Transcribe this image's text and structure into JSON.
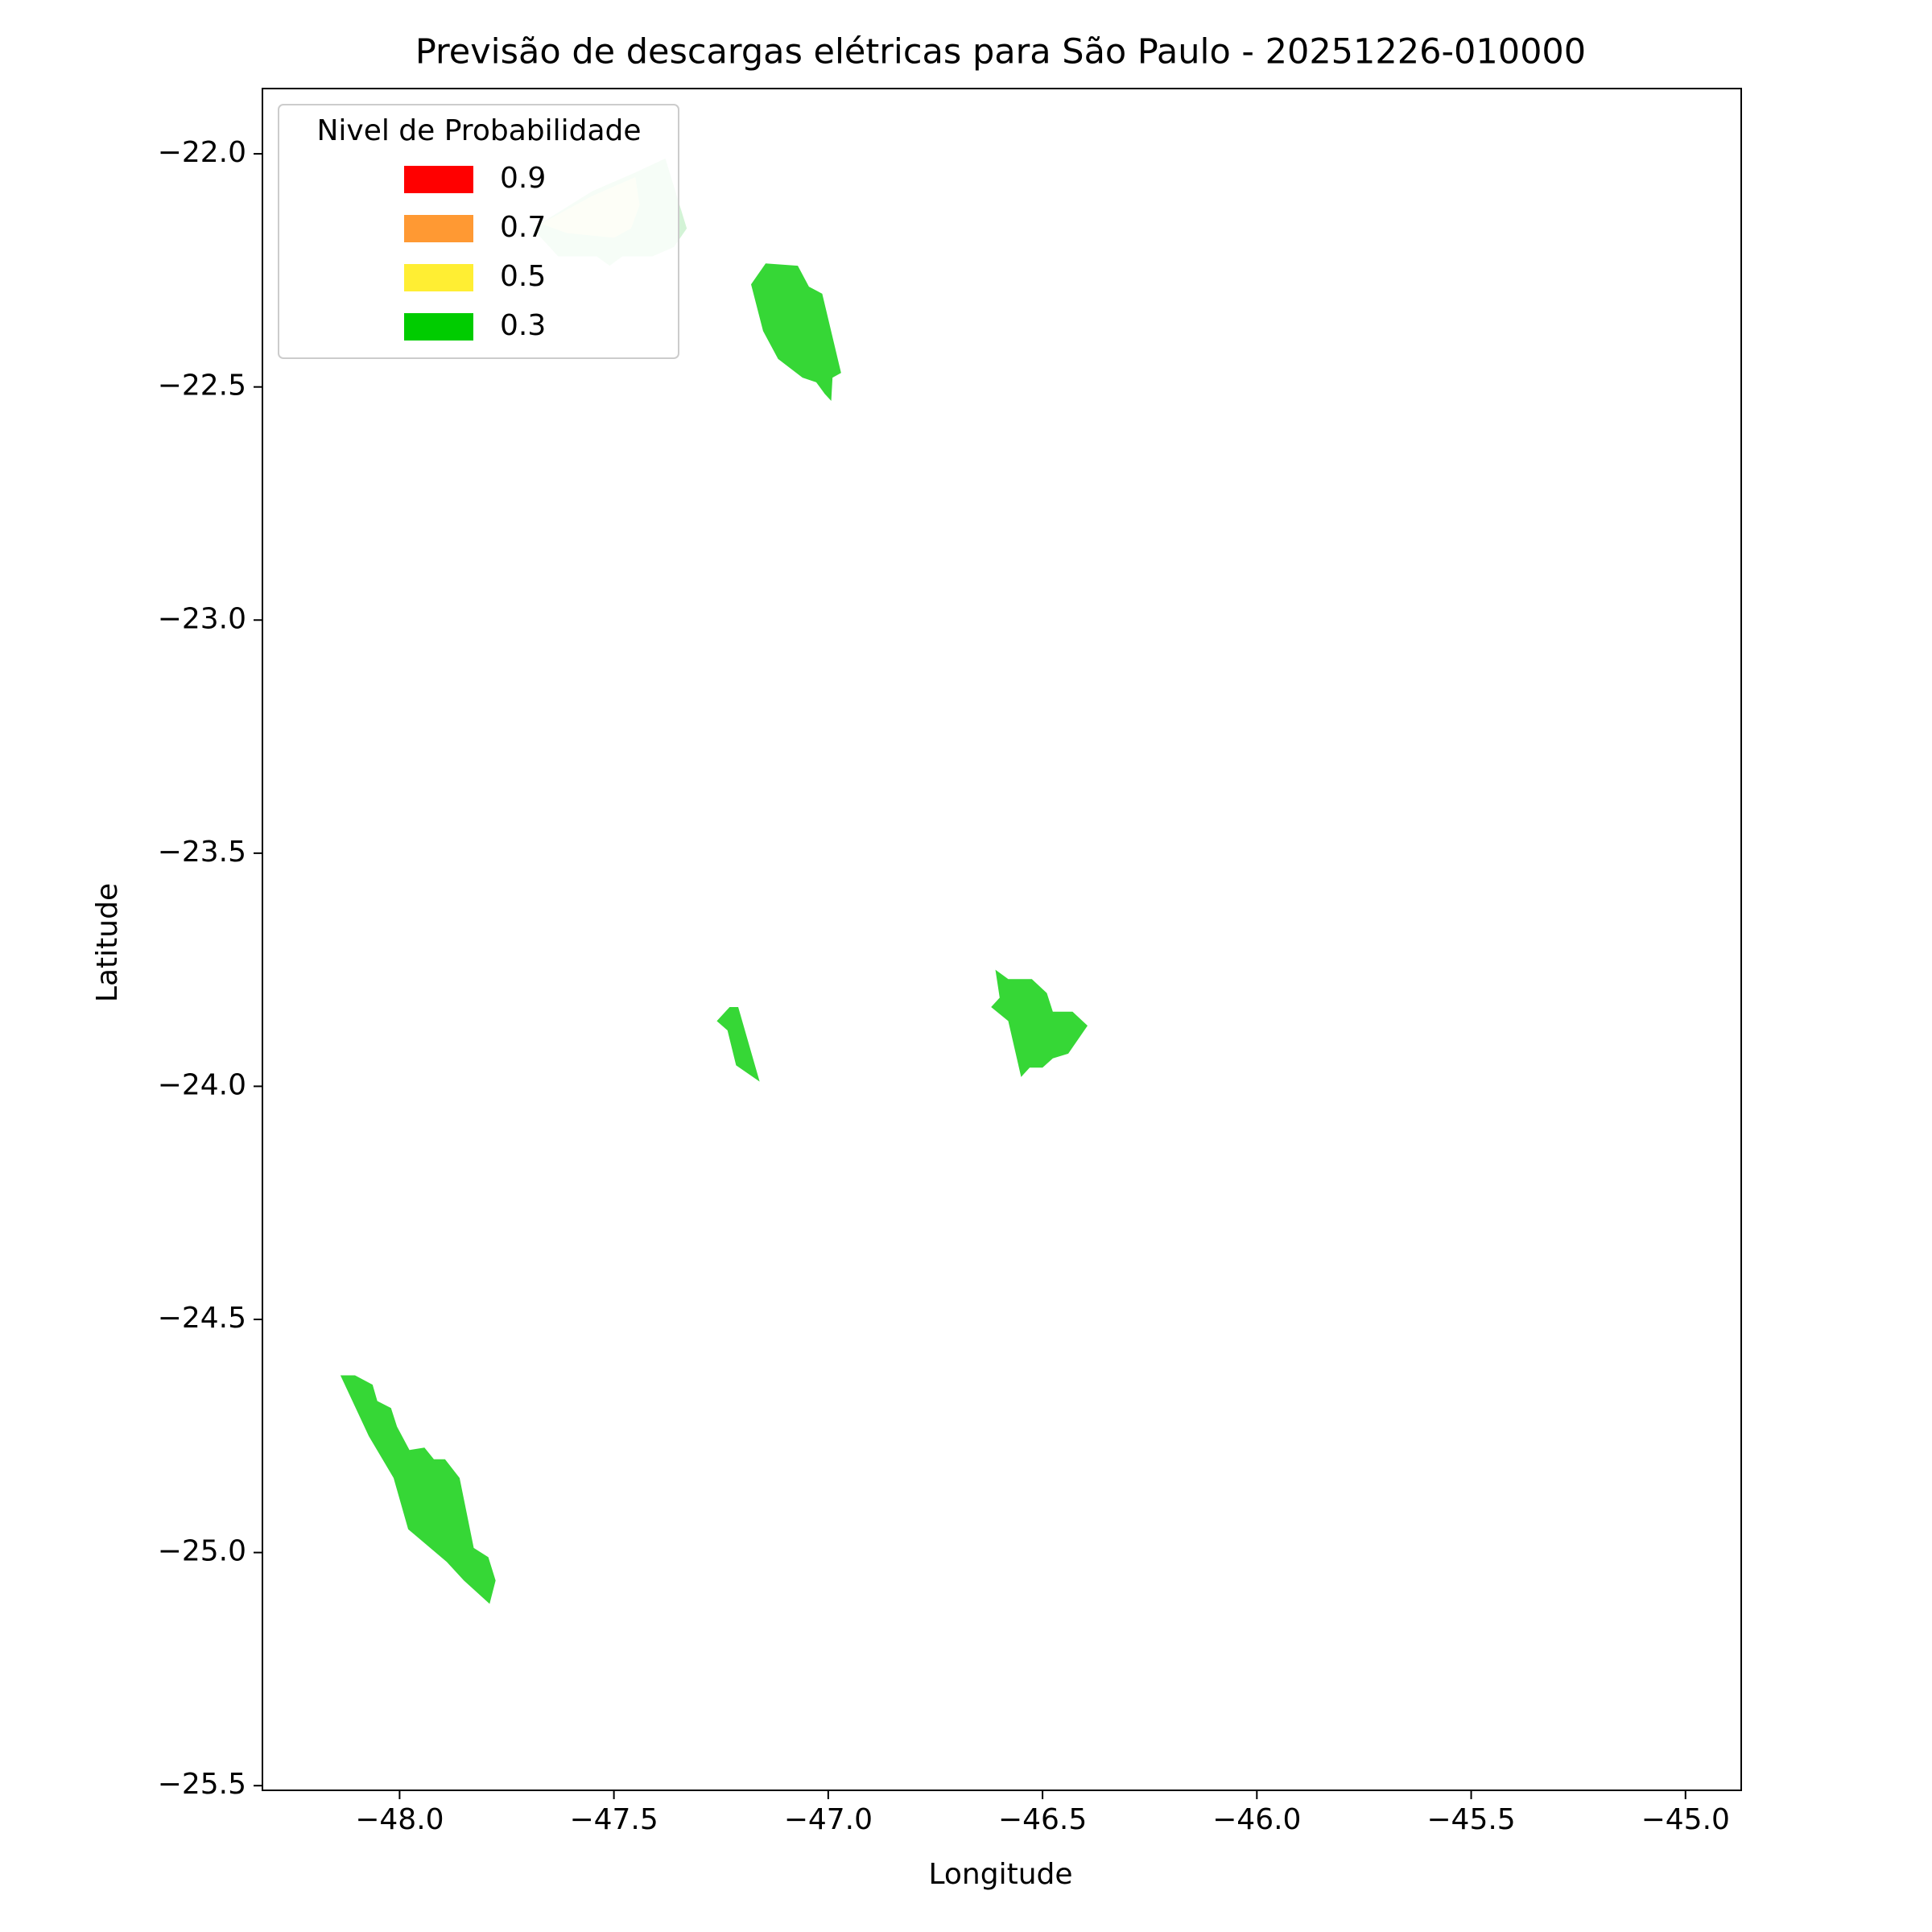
{
  "chart_data": {
    "type": "polygon-map",
    "title": "Previsão de descargas elétricas para São Paulo - 20251226-010000",
    "x_label": "Longitude",
    "y_label": "Latitude",
    "xlim": [
      -48.32,
      -44.87
    ],
    "ylim": [
      -25.51,
      -21.86
    ],
    "xticks": [
      {
        "value": -48,
        "label": "−48.0"
      },
      {
        "value": -47.5,
        "label": "−47.5"
      },
      {
        "value": -47,
        "label": "−47.0"
      },
      {
        "value": -46.5,
        "label": "−46.5"
      },
      {
        "value": -46,
        "label": "−46.0"
      },
      {
        "value": -45.5,
        "label": "−45.5"
      },
      {
        "value": -45,
        "label": "−45.0"
      }
    ],
    "yticks": [
      {
        "value": -22,
        "label": "−22.0"
      },
      {
        "value": -22.5,
        "label": "−22.5"
      },
      {
        "value": -23,
        "label": "−23.0"
      },
      {
        "value": -23.5,
        "label": "−23.5"
      },
      {
        "value": -24,
        "label": "−24.0"
      },
      {
        "value": -24.5,
        "label": "−24.5"
      },
      {
        "value": -25,
        "label": "−25.0"
      },
      {
        "value": -25.5,
        "label": "−25.5"
      }
    ],
    "legend": {
      "title": "Nivel de Probabilidade",
      "loc": "upper left",
      "entries": [
        {
          "label": "0.9",
          "color": "#ff0000"
        },
        {
          "label": "0.7",
          "color": "#ff9933"
        },
        {
          "label": "0.5",
          "color": "#ffee33"
        },
        {
          "label": "0.3",
          "color": "#00cc00"
        }
      ]
    },
    "polygons": [
      {
        "color": "#d3f3d6",
        "x": [
          -47.69,
          -47.55,
          -47.45,
          -47.38,
          -47.33,
          -47.36,
          -47.41,
          -47.48,
          -47.51,
          -47.54,
          -47.63
        ],
        "y": [
          -22.16,
          -22.08,
          -22.04,
          -22.01,
          -22.16,
          -22.2,
          -22.22,
          -22.22,
          -22.24,
          -22.22,
          -22.22
        ]
      },
      {
        "color": "#f4f8d8",
        "x": [
          -47.67,
          -47.55,
          -47.45,
          -47.44,
          -47.46,
          -47.5,
          -47.61
        ],
        "y": [
          -22.15,
          -22.09,
          -22.05,
          -22.11,
          -22.16,
          -22.18,
          -22.17
        ]
      },
      {
        "color": "#36d736",
        "x": [
          -47.18,
          -47.146,
          -47.071,
          -47.045,
          -47.014,
          -46.97,
          -46.99,
          -46.993,
          -47.008,
          -47.028,
          -47.06,
          -47.117,
          -47.152
        ],
        "y": [
          -22.28,
          -22.235,
          -22.24,
          -22.285,
          -22.3,
          -22.47,
          -22.48,
          -22.53,
          -22.515,
          -22.49,
          -22.48,
          -22.44,
          -22.38
        ]
      },
      {
        "color": "#36d736",
        "x": [
          -47.26,
          -47.23,
          -47.21,
          -47.16,
          -47.215,
          -47.235
        ],
        "y": [
          -23.86,
          -23.83,
          -23.83,
          -23.99,
          -23.955,
          -23.88
        ]
      },
      {
        "color": "#36d736",
        "x": [
          -46.61,
          -46.58,
          -46.525,
          -46.49,
          -46.476,
          -46.43,
          -46.395,
          -46.44,
          -46.476,
          -46.5,
          -46.53,
          -46.55,
          -46.58,
          -46.62,
          -46.6
        ],
        "y": [
          -23.75,
          -23.77,
          -23.77,
          -23.8,
          -23.84,
          -23.84,
          -23.87,
          -23.93,
          -23.94,
          -23.96,
          -23.96,
          -23.98,
          -23.86,
          -23.83,
          -23.81
        ]
      },
      {
        "color": "#d9e338",
        "x": [
          -48.035,
          -47.986,
          -47.977,
          -47.9,
          -47.89,
          -47.848,
          -47.928,
          -48.0
        ],
        "y": [
          -24.8,
          -24.826,
          -24.887,
          -24.945,
          -25.016,
          -25.056,
          -24.97,
          -24.866
        ]
      },
      {
        "color": "#36d736",
        "x": [
          -48.138,
          -48.104,
          -48.063,
          -48.052,
          -48.02,
          -48.006,
          -47.977,
          -47.942,
          -47.92,
          -47.894,
          -47.86,
          -47.827,
          -47.793,
          -47.776,
          -47.79,
          -47.85,
          -47.89,
          -47.98,
          -48.014,
          -48.072
        ],
        "y": [
          -24.62,
          -24.62,
          -24.64,
          -24.675,
          -24.69,
          -24.73,
          -24.78,
          -24.775,
          -24.8,
          -24.8,
          -24.84,
          -24.99,
          -25.01,
          -25.06,
          -25.11,
          -25.06,
          -25.02,
          -24.95,
          -24.84,
          -24.75
        ]
      }
    ]
  }
}
